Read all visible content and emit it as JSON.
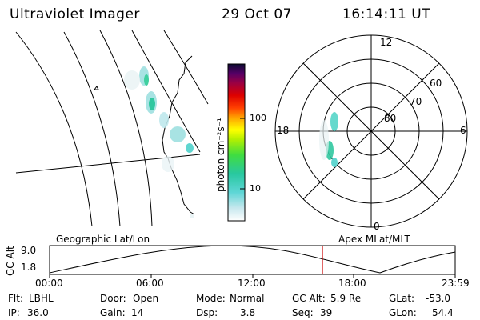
{
  "header": {
    "title": "Ultraviolet Imager",
    "date": "29 Oct 07",
    "time": "16:14:11 UT"
  },
  "colorbar": {
    "unit": "photon cm⁻²s⁻¹",
    "ticks": [
      "100",
      "10"
    ]
  },
  "polar_plot": {
    "mlt_labels": [
      "12",
      "18",
      "6",
      "0"
    ],
    "lat_labels": [
      "60",
      "70",
      "80"
    ]
  },
  "altitude_panel": {
    "left_title": "Geographic Lat/Lon",
    "right_title": "Apex MLat/MLT",
    "ylabel": "GC Alt",
    "ytick_top": "9.0",
    "ytick_bottom": "1.8",
    "time_ticks": [
      "00:00",
      "06:00",
      "12:00",
      "18:00",
      "23:59"
    ],
    "marker_time": "16:14"
  },
  "footer": {
    "row1": [
      {
        "label": "Flt:",
        "value": "LBHL"
      },
      {
        "label": "Door:",
        "value": "Open"
      },
      {
        "label": "Mode:",
        "value": "Normal"
      },
      {
        "label": "GC Alt:",
        "value": "5.9 Re"
      },
      {
        "label": "GLat:",
        "value": "-53.0"
      }
    ],
    "row2": [
      {
        "label": "IP:",
        "value": "36.0"
      },
      {
        "label": "Gain:",
        "value": "14"
      },
      {
        "label": "Dsp:",
        "value": "3.8"
      },
      {
        "label": "Seq:",
        "value": "39"
      },
      {
        "label": "GLon:",
        "value": "54.4"
      }
    ]
  },
  "colors": {
    "marker": "#cc0000",
    "background": "#ffffff"
  }
}
